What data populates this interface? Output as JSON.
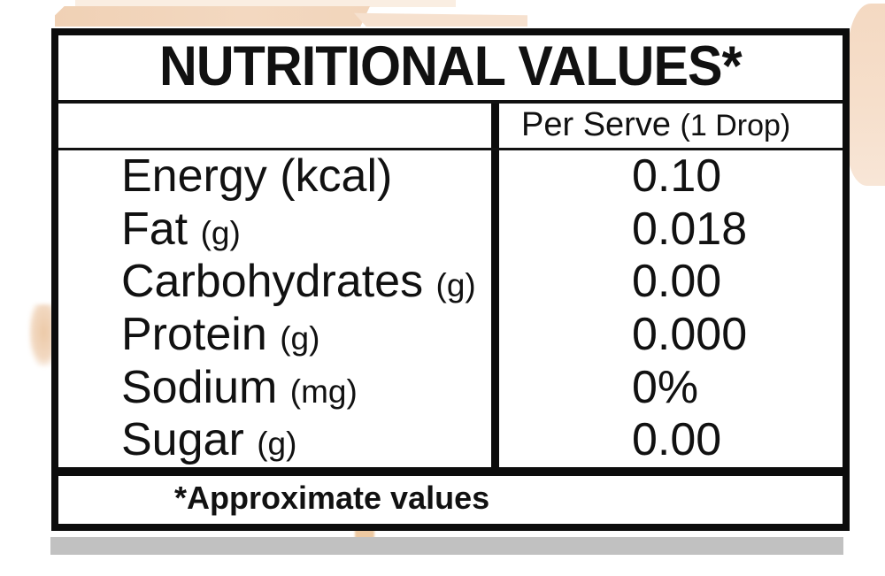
{
  "colors": {
    "page_bg": "#ffffff",
    "table_border": "#0c0c0c",
    "text": "#111111",
    "accent_peach": "#f2d5bb",
    "gray_bar": "#c1c1c1"
  },
  "table": {
    "title": "NUTRITIONAL VALUES*",
    "header": {
      "blank_label": "",
      "value_col_main": "Per Serve",
      "value_col_paren": "(1 Drop)"
    },
    "rows": [
      {
        "name": "Energy",
        "unit": "(kcal)",
        "unit_style": "normal",
        "value": "0.10"
      },
      {
        "name": "Fat",
        "unit": "(g)",
        "unit_style": "small",
        "value": "0.018"
      },
      {
        "name": "Carbohydrates",
        "unit": "(g)",
        "unit_style": "small",
        "value": "0.00"
      },
      {
        "name": "Protein",
        "unit": "(g)",
        "unit_style": "small",
        "value": "0.000"
      },
      {
        "name": "Sodium",
        "unit": "(mg)",
        "unit_style": "small",
        "value": "0%"
      },
      {
        "name": "Sugar",
        "unit": "(g)",
        "unit_style": "small",
        "value": "0.00"
      }
    ],
    "footnote": "*Approximate values"
  }
}
